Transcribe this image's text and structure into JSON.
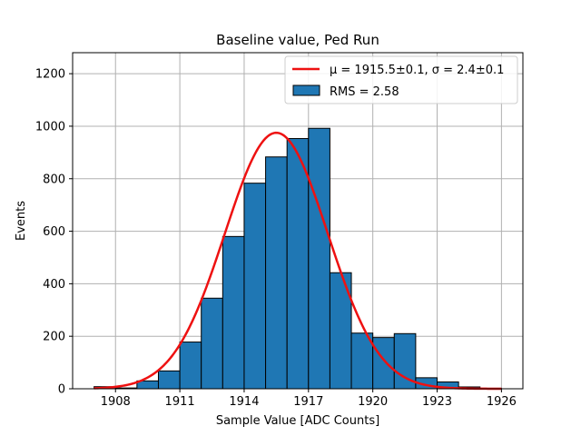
{
  "chart_data": {
    "type": "bar",
    "title": "Baseline value, Ped Run",
    "xlabel": "Sample Value [ADC Counts]",
    "ylabel": "Events",
    "xlim": [
      1906.0,
      1927.0
    ],
    "ylim": [
      0,
      1280
    ],
    "xticks": [
      1908,
      1911,
      1914,
      1917,
      1920,
      1923,
      1926
    ],
    "yticks": [
      0,
      200,
      400,
      600,
      800,
      1000,
      1200
    ],
    "grid": true,
    "legend_position": "top-right",
    "bar_color": "#1f77b4",
    "fit_color": "#ee1111",
    "bin_width": 1.0,
    "bin_centers": [
      1907.5,
      1908.5,
      1909.5,
      1910.5,
      1911.5,
      1912.5,
      1913.5,
      1914.5,
      1915.5,
      1916.5,
      1917.5,
      1918.5,
      1919.5,
      1920.5,
      1921.5,
      1922.5,
      1923.5,
      1924.5,
      1925.5
    ],
    "counts": [
      8,
      3,
      30,
      68,
      178,
      345,
      580,
      783,
      883,
      953,
      992,
      442,
      212,
      195,
      210,
      42,
      26,
      7,
      2
    ],
    "fit": {
      "mu": 1915.5,
      "sigma": 2.4,
      "amplitude": 975,
      "x_range": [
        1907,
        1926
      ]
    },
    "legend": {
      "fit_label": "μ = 1915.5±0.1, σ = 2.4±0.1",
      "hist_label": "RMS = 2.58"
    }
  }
}
